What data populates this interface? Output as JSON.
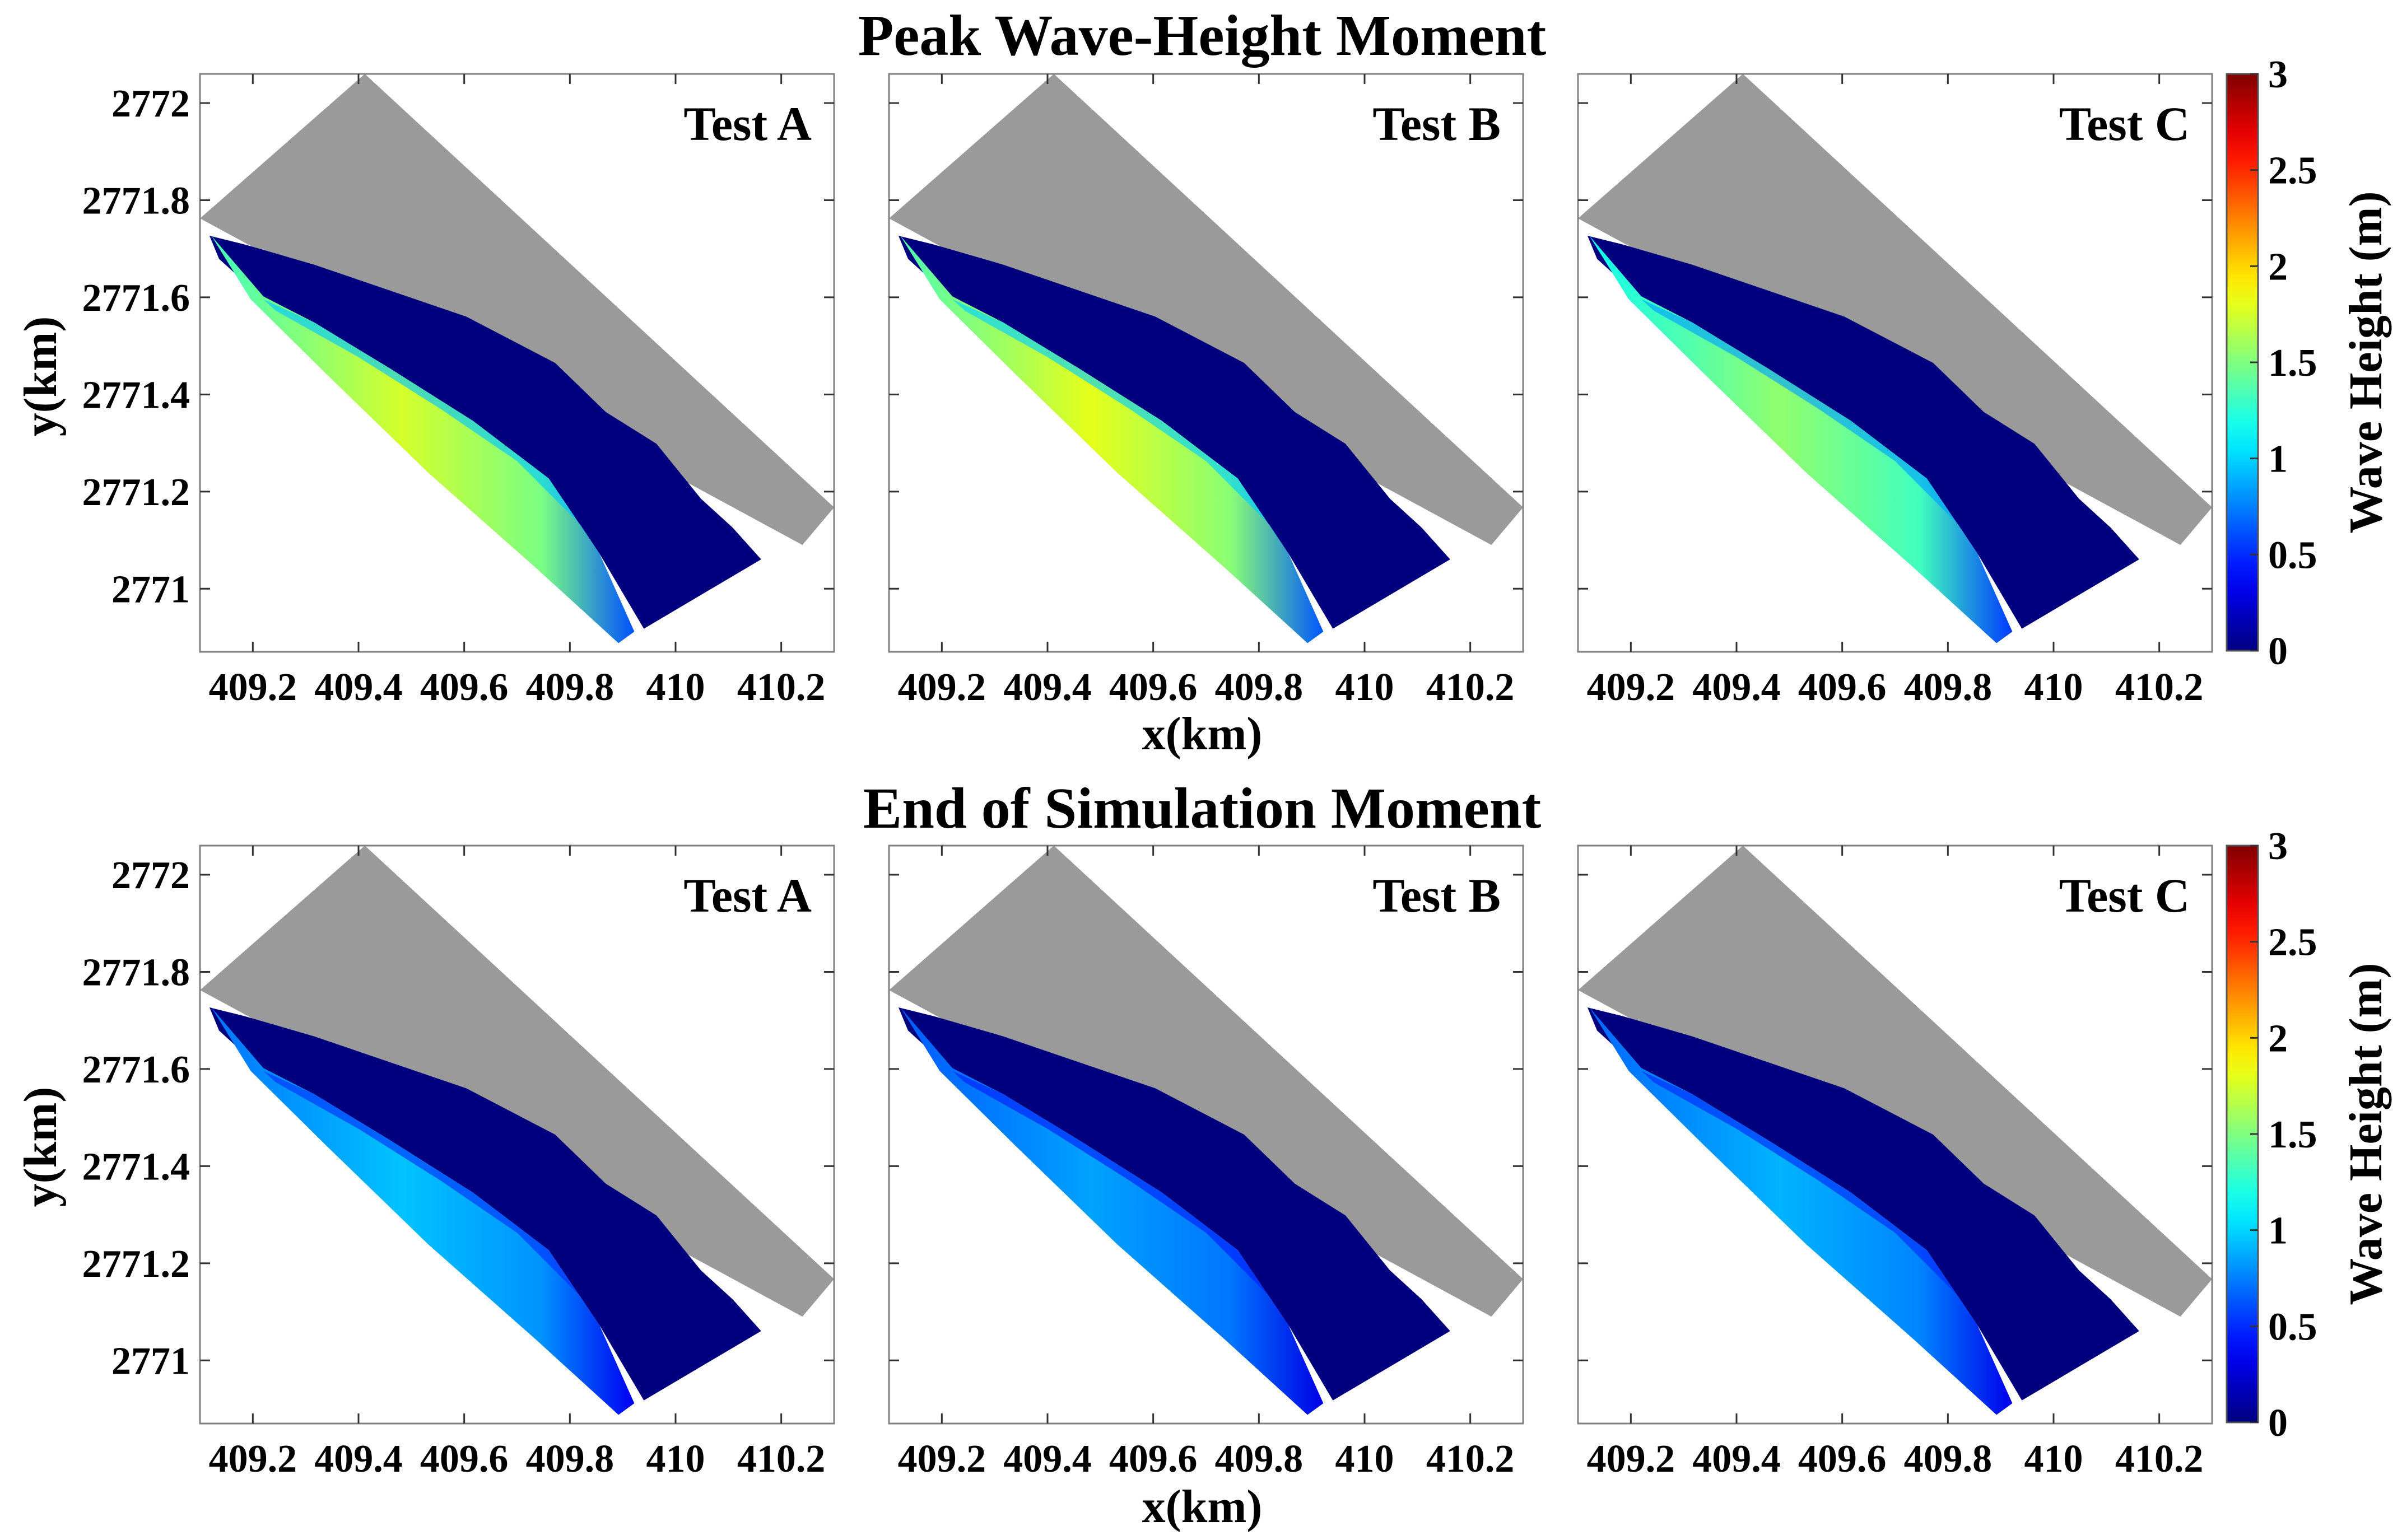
{
  "figure": {
    "rows": [
      {
        "title": "Peak Wave-Height Moment",
        "panels": [
          {
            "label": "Test A",
            "offshore_level": 1.75
          },
          {
            "label": "Test B",
            "offshore_level": 1.8
          },
          {
            "label": "Test C",
            "offshore_level": 1.55
          }
        ]
      },
      {
        "title": "End of Simulation Moment",
        "panels": [
          {
            "label": "Test A",
            "offshore_level": 0.95
          },
          {
            "label": "Test B",
            "offshore_level": 0.85
          },
          {
            "label": "Test C",
            "offshore_level": 0.9
          }
        ]
      }
    ],
    "colorbar": {
      "label": "Wave Height (m)",
      "ticks": [
        "0",
        "0.5",
        "1",
        "1.5",
        "2",
        "2.5",
        "3"
      ],
      "range": [
        0,
        3
      ],
      "colormap": "jet"
    },
    "xlabel": "x(km)",
    "ylabel": "y(km)",
    "xticks": [
      "409.2",
      "409.4",
      "409.6",
      "409.8",
      "410",
      "410.2"
    ],
    "yticks": [
      "2771",
      "2771.2",
      "2771.4",
      "2771.6",
      "2771.8",
      "2772"
    ],
    "colors": {
      "land": "#9a9a9a",
      "nearshore": "#00007e",
      "frame": "#808080"
    }
  },
  "chart_data": [
    {
      "type": "heatmap",
      "title": "Peak Wave-Height Moment",
      "subtitle": "Test A",
      "xlabel": "x(km)",
      "ylabel": "y(km)",
      "xlim": [
        409.1,
        410.3
      ],
      "ylim": [
        2770.87,
        2772.06
      ],
      "colorbar_label": "Wave Height (m)",
      "clim": [
        0,
        3
      ],
      "typical_offshore_wave_height_m": 1.75,
      "typical_nearshore_wave_height_m": 0.05
    },
    {
      "type": "heatmap",
      "title": "Peak Wave-Height Moment",
      "subtitle": "Test B",
      "xlabel": "x(km)",
      "ylabel": "",
      "xlim": [
        409.1,
        410.3
      ],
      "ylim": [
        2770.87,
        2772.06
      ],
      "colorbar_label": "Wave Height (m)",
      "clim": [
        0,
        3
      ],
      "typical_offshore_wave_height_m": 1.8,
      "typical_nearshore_wave_height_m": 0.05
    },
    {
      "type": "heatmap",
      "title": "Peak Wave-Height Moment",
      "subtitle": "Test C",
      "xlabel": "x(km)",
      "ylabel": "",
      "xlim": [
        409.1,
        410.3
      ],
      "ylim": [
        2770.87,
        2772.06
      ],
      "colorbar_label": "Wave Height (m)",
      "clim": [
        0,
        3
      ],
      "typical_offshore_wave_height_m": 1.55,
      "typical_nearshore_wave_height_m": 0.05
    },
    {
      "type": "heatmap",
      "title": "End of Simulation Moment",
      "subtitle": "Test A",
      "xlabel": "x(km)",
      "ylabel": "y(km)",
      "xlim": [
        409.1,
        410.3
      ],
      "ylim": [
        2770.87,
        2772.06
      ],
      "colorbar_label": "Wave Height (m)",
      "clim": [
        0,
        3
      ],
      "typical_offshore_wave_height_m": 0.95,
      "typical_nearshore_wave_height_m": 0.05
    },
    {
      "type": "heatmap",
      "title": "End of Simulation Moment",
      "subtitle": "Test B",
      "xlabel": "x(km)",
      "ylabel": "",
      "xlim": [
        409.1,
        410.3
      ],
      "ylim": [
        2770.87,
        2772.06
      ],
      "colorbar_label": "Wave Height (m)",
      "clim": [
        0,
        3
      ],
      "typical_offshore_wave_height_m": 0.85,
      "typical_nearshore_wave_height_m": 0.05
    },
    {
      "type": "heatmap",
      "title": "End of Simulation Moment",
      "subtitle": "Test C",
      "xlabel": "x(km)",
      "ylabel": "",
      "xlim": [
        409.1,
        410.3
      ],
      "ylim": [
        2770.87,
        2772.06
      ],
      "colorbar_label": "Wave Height (m)",
      "clim": [
        0,
        3
      ],
      "typical_offshore_wave_height_m": 0.9,
      "typical_nearshore_wave_height_m": 0.05
    }
  ]
}
